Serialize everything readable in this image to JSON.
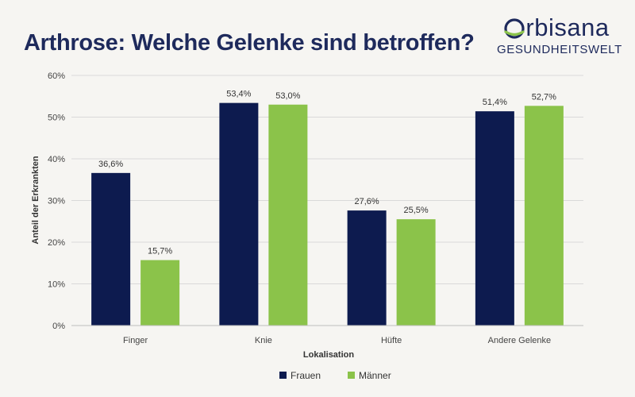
{
  "header": {
    "title": "Arthrose: Welche Gelenke sind betroffen?"
  },
  "logo": {
    "name_rest": "rbisana",
    "subtitle": "GESUNDHEITSWELT",
    "colors": {
      "navy": "#1e2a5c",
      "green": "#8bc34a"
    }
  },
  "chart_data": {
    "type": "bar",
    "title": "Arthrose: Welche Gelenke sind betroffen?",
    "categories": [
      "Finger",
      "Knie",
      "Hüfte",
      "Andere Gelenke"
    ],
    "series": [
      {
        "name": "Frauen",
        "values": [
          36.6,
          53.4,
          27.6,
          51.4
        ],
        "labels": [
          "36,6%",
          "53,4%",
          "27,6%",
          "51,4%"
        ],
        "color": "#0d1b4f"
      },
      {
        "name": "Männer",
        "values": [
          15.7,
          53.0,
          25.5,
          52.7
        ],
        "labels": [
          "15,7%",
          "53,0%",
          "25,5%",
          "52,7%"
        ],
        "color": "#8bc34a"
      }
    ],
    "xlabel": "Lokalisation",
    "ylabel": "Anteil der Erkrankten",
    "ylim": [
      0,
      60
    ],
    "yticks": [
      0,
      10,
      20,
      30,
      40,
      50,
      60
    ],
    "ytick_labels": [
      "0%",
      "10%",
      "20%",
      "30%",
      "40%",
      "50%",
      "60%"
    ],
    "grid": true,
    "legend_position": "bottom-center"
  }
}
